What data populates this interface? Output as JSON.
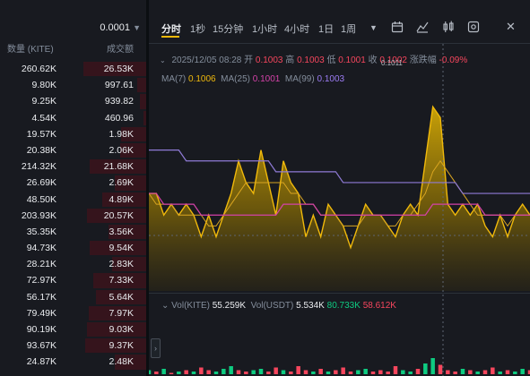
{
  "order_book": {
    "precision": "0.0001",
    "col_qty": "数量 (KITE)",
    "col_amount": "成交额",
    "rows": [
      {
        "qty": "260.62K",
        "amount": "26.53K",
        "depth": 1.0
      },
      {
        "qty": "9.80K",
        "amount": "997.61",
        "depth": 0.15
      },
      {
        "qty": "9.25K",
        "amount": "939.82",
        "depth": 0.1
      },
      {
        "qty": "4.54K",
        "amount": "460.96",
        "depth": 0.05
      },
      {
        "qty": "19.57K",
        "amount": "1.98K",
        "depth": 0.4
      },
      {
        "qty": "20.38K",
        "amount": "2.06K",
        "depth": 0.42
      },
      {
        "qty": "214.32K",
        "amount": "21.68K",
        "depth": 0.9
      },
      {
        "qty": "26.69K",
        "amount": "2.69K",
        "depth": 0.5
      },
      {
        "qty": "48.50K",
        "amount": "4.89K",
        "depth": 0.7
      },
      {
        "qty": "203.93K",
        "amount": "20.57K",
        "depth": 0.95
      },
      {
        "qty": "35.35K",
        "amount": "3.56K",
        "depth": 0.6
      },
      {
        "qty": "94.73K",
        "amount": "9.54K",
        "depth": 0.9
      },
      {
        "qty": "28.21K",
        "amount": "2.83K",
        "depth": 0.55
      },
      {
        "qty": "72.97K",
        "amount": "7.33K",
        "depth": 0.85
      },
      {
        "qty": "56.17K",
        "amount": "5.64K",
        "depth": 0.8
      },
      {
        "qty": "79.49K",
        "amount": "7.97K",
        "depth": 0.92
      },
      {
        "qty": "90.19K",
        "amount": "9.03K",
        "depth": 0.95
      },
      {
        "qty": "93.67K",
        "amount": "9.37K",
        "depth": 0.97
      },
      {
        "qty": "24.87K",
        "amount": "2.48K",
        "depth": 0.5
      }
    ]
  },
  "toolbar": {
    "timeframes": [
      "分时",
      "1秒",
      "15分钟",
      "1小时",
      "4小时",
      "1日",
      "1周"
    ],
    "active": "分时",
    "more_icon": "caret-down-icon",
    "tools": [
      "calendar-icon",
      "indicator-icon",
      "candle-icon",
      "settings-icon"
    ]
  },
  "ohlc": {
    "time": "2025/12/05 08:28",
    "open_label": "开",
    "open": "0.1003",
    "high_label": "高",
    "high": "0.1003",
    "low_label": "低",
    "low": "0.1001",
    "close_label": "收",
    "close": "0.1002",
    "change_label": "涨跌幅",
    "change": "-0.09%"
  },
  "ma": {
    "ma7_label": "MA(7)",
    "ma7": "0.1006",
    "ma25_label": "MA(25)",
    "ma25": "0.1001",
    "ma99_label": "MA(99)",
    "ma99": "0.1003"
  },
  "peak_label": "0.1011",
  "volume": {
    "vol_kite_label": "Vol(KITE)",
    "vol_kite": "55.259K",
    "vol_usdt_label": "Vol(USDT)",
    "vol_usdt": "5.534K",
    "ma5": "80.733K",
    "ma10": "58.612K"
  },
  "chart_data": {
    "type": "area",
    "series": [
      {
        "values": [
          0.1003,
          0.1003,
          0.1001,
          0.1002,
          0.1001,
          0.1002,
          0.1001,
          0.0999,
          0.1001,
          0.0999,
          0.1001,
          0.1003,
          0.1006,
          0.1004,
          0.1003,
          0.1007,
          0.1004,
          0.1001,
          0.1006,
          0.1004,
          0.1003,
          0.0999,
          0.1001,
          0.0999,
          0.1002,
          0.1001,
          0.1,
          0.0998,
          0.1,
          0.1002,
          0.1001,
          0.1001,
          0.1,
          0.0999,
          0.1001,
          0.1002,
          0.1001,
          0.1006,
          0.1011,
          0.101,
          0.1002,
          0.1001,
          0.1002,
          0.1001,
          0.1002,
          0.1,
          0.0999,
          0.1001,
          0.0999,
          0.1001,
          0.1002,
          0.1001
        ]
      },
      {
        "values": [
          0.1003,
          0.1002,
          0.1002,
          0.1002,
          0.1001,
          0.1001,
          0.1001,
          0.1001,
          0.1,
          0.1,
          0.1001,
          0.1002,
          0.1003,
          0.1004,
          0.1004,
          0.1004,
          0.1004,
          0.1004,
          0.1004,
          0.1003,
          0.1003,
          0.1002,
          0.1002,
          0.1001,
          0.1001,
          0.1001,
          0.1,
          0.1,
          0.1,
          0.1001,
          0.1001,
          0.1001,
          0.1,
          0.1,
          0.1001,
          0.1001,
          0.1002,
          0.1003,
          0.1005,
          0.1006,
          0.1005,
          0.1004,
          0.1003,
          0.1002,
          0.1001,
          0.1001,
          0.1001,
          0.1001,
          0.1,
          0.1001,
          0.1001,
          0.1001
        ]
      },
      {
        "values": [
          0.1003,
          0.1003,
          0.1002,
          0.1002,
          0.1002,
          0.1002,
          0.1002,
          0.1001,
          0.1001,
          0.1001,
          0.1001,
          0.1001,
          0.1001,
          0.1001,
          0.1001,
          0.1001,
          0.1001,
          0.1001,
          0.1002,
          0.1002,
          0.1002,
          0.1002,
          0.1002,
          0.1001,
          0.1001,
          0.1001,
          0.1001,
          0.1001,
          0.1001,
          0.1001,
          0.1001,
          0.1001,
          0.1001,
          0.1001,
          0.1001,
          0.1001,
          0.1001,
          0.1001,
          0.1002,
          0.1002,
          0.1002,
          0.1002,
          0.1002,
          0.1002,
          0.1002,
          0.1001,
          0.1001,
          0.1001,
          0.1001,
          0.1001,
          0.1001,
          0.1001
        ]
      },
      {
        "values": [
          0.1007,
          0.1007,
          0.1007,
          0.1007,
          0.1007,
          0.1006,
          0.1006,
          0.1006,
          0.1006,
          0.1006,
          0.1006,
          0.1006,
          0.1006,
          0.1006,
          0.1006,
          0.1006,
          0.1006,
          0.1005,
          0.1005,
          0.1005,
          0.1005,
          0.1005,
          0.1005,
          0.1005,
          0.1005,
          0.1005,
          0.1004,
          0.1004,
          0.1004,
          0.1004,
          0.1004,
          0.1004,
          0.1004,
          0.1004,
          0.1004,
          0.1004,
          0.1004,
          0.1004,
          0.1004,
          0.1004,
          0.1004,
          0.1004,
          0.1003,
          0.1003,
          0.1003,
          0.1003,
          0.1003,
          0.1003,
          0.1003,
          0.1003,
          0.1003,
          0.1003
        ]
      }
    ],
    "ylim": [
      0.0994,
      0.1013
    ],
    "volume_values": [
      3,
      2,
      4,
      1,
      2,
      3,
      2,
      5,
      3,
      2,
      4,
      6,
      3,
      2,
      3,
      4,
      2,
      5,
      3,
      2,
      6,
      3,
      2,
      4,
      2,
      3,
      5,
      2,
      3,
      4,
      2,
      3,
      2,
      6,
      3,
      2,
      4,
      8,
      12,
      7,
      3,
      2,
      4,
      3,
      2,
      3,
      5,
      2,
      3,
      2,
      4,
      3
    ],
    "volume_up": [
      1,
      0,
      1,
      0,
      1,
      0,
      1,
      0,
      0,
      1,
      1,
      1,
      0,
      0,
      1,
      1,
      0,
      0,
      1,
      0,
      0,
      0,
      1,
      0,
      1,
      0,
      0,
      0,
      1,
      1,
      0,
      0,
      0,
      0,
      1,
      1,
      0,
      1,
      1,
      0,
      0,
      0,
      1,
      0,
      1,
      0,
      0,
      1,
      0,
      1,
      1,
      0
    ]
  }
}
